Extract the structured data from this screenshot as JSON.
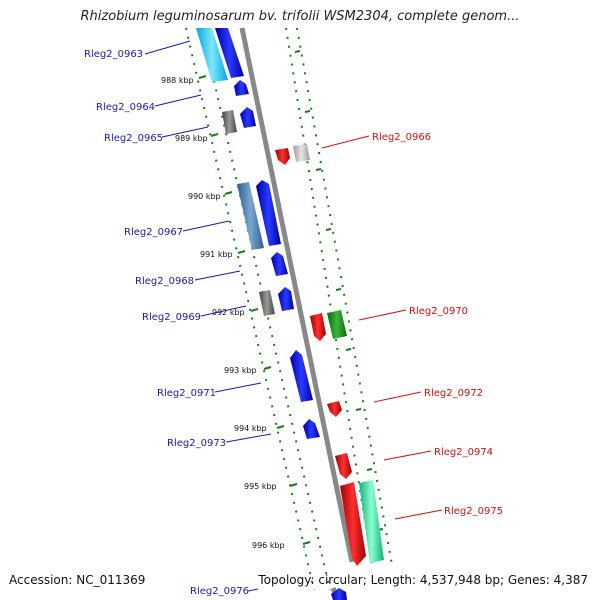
{
  "title": "Rhizobium leguminosarum bv. trifolii WSM2304, complete genom...",
  "accession": "Accession: NC_011369",
  "summary": "Topology: circular; Length: 4,537,948 bp; Genes: 4,387",
  "kbp_labels": [
    "988 kbp",
    "989 kbp",
    "990 kbp",
    "991 kbp",
    "992 kbp",
    "993 kbp",
    "994 kbp",
    "995 kbp",
    "996 kbp"
  ],
  "genes_left": [
    "Rleg2_0963",
    "Rleg2_0964",
    "Rleg2_0965",
    "Rleg2_0967",
    "Rleg2_0968",
    "Rleg2_0969",
    "Rleg2_0971",
    "Rleg2_0973",
    "Rleg2_0976"
  ],
  "genes_right": [
    "Rleg2_0966",
    "Rleg2_0970",
    "Rleg2_0972",
    "Rleg2_0974",
    "Rleg2_0975"
  ],
  "colors": {
    "forward_gene": "#0000ee",
    "reverse_gene": "#ee0000",
    "left_label": "#1a1aaa",
    "right_label": "#cc1111",
    "tick_green": "#1a7a1a",
    "backbone": "#888888"
  }
}
